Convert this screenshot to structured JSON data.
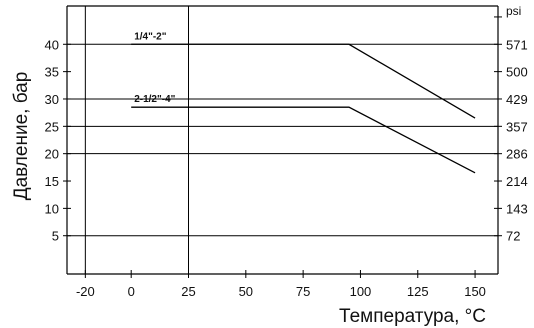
{
  "chart_data": {
    "type": "line",
    "xlabel": "Температура, °C",
    "ylabel": "Давление, бар",
    "right_axis_unit": "psi",
    "xlim": [
      -28,
      160
    ],
    "ylim": [
      -2,
      47
    ],
    "x_ticks": [
      -20,
      0,
      25,
      50,
      75,
      100,
      125,
      150
    ],
    "y_ticks": [
      5,
      10,
      15,
      20,
      25,
      30,
      35,
      40
    ],
    "right_ticks": [
      {
        "bar": 5,
        "label": "72"
      },
      {
        "bar": 10,
        "label": "143"
      },
      {
        "bar": 15,
        "label": "214"
      },
      {
        "bar": 20,
        "label": "286"
      },
      {
        "bar": 25,
        "label": "357"
      },
      {
        "bar": 30,
        "label": "429"
      },
      {
        "bar": 35,
        "label": "500"
      },
      {
        "bar": 40,
        "label": "571"
      },
      {
        "bar": 45,
        "label": "psi"
      }
    ],
    "h_gridlines": [
      5,
      20,
      25,
      30,
      40
    ],
    "v_gridlines": [
      -20,
      25
    ],
    "series": [
      {
        "name": "1/4\"-2\"",
        "x": [
          0,
          95,
          150
        ],
        "y": [
          40,
          40,
          26.5
        ]
      },
      {
        "name": "2-1/2\"-4\"",
        "x": [
          0,
          95,
          150
        ],
        "y": [
          28.5,
          28.5,
          16.5
        ]
      }
    ]
  }
}
